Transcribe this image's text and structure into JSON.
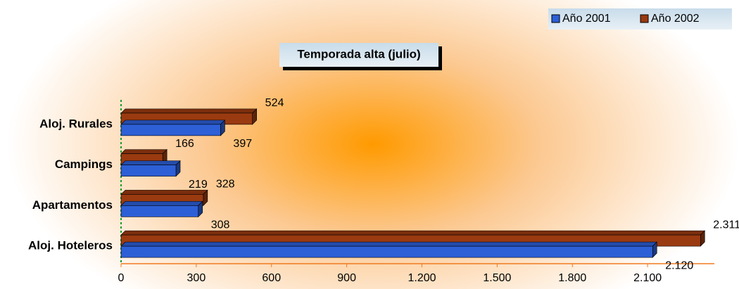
{
  "chart_data": {
    "type": "hbar",
    "title": "Temporada alta (julio)",
    "categories": [
      "Aloj. Rurales",
      "Campings",
      "Apartamentos",
      "Aloj. Hoteleros"
    ],
    "series": [
      {
        "name": "Año 2001",
        "color": "#2d5fd6",
        "values": [
          397,
          219,
          308,
          2120
        ],
        "value_labels": [
          "397",
          "219",
          "308",
          "2.120"
        ]
      },
      {
        "name": "Año 2002",
        "color": "#9a3a10",
        "values": [
          524,
          166,
          328,
          2311
        ],
        "value_labels": [
          "524",
          "166",
          "328",
          "2.311"
        ]
      }
    ],
    "xlim": [
      0,
      2400
    ],
    "xticks": [
      0,
      300,
      600,
      900,
      {
        "value": 1200,
        "label": "1.200"
      },
      {
        "value": 1500,
        "label": "1.500"
      },
      {
        "value": 1800,
        "label": "1.800"
      },
      {
        "value": 2100,
        "label": "2.100"
      }
    ],
    "legend": "top-right"
  }
}
